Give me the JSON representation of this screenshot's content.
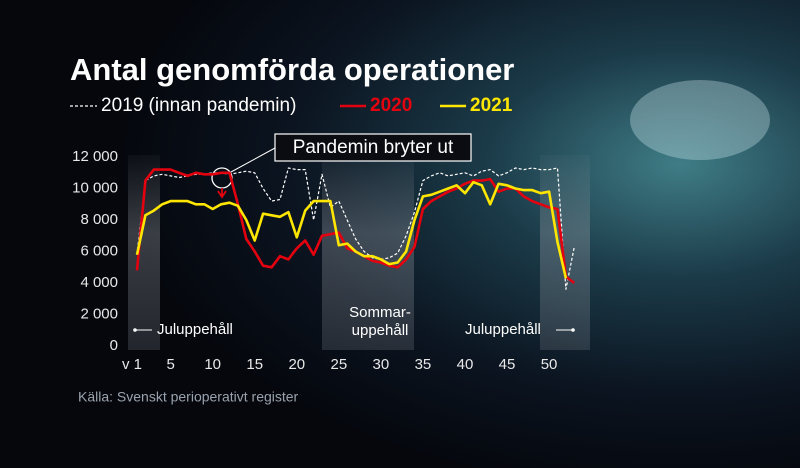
{
  "chart_data": {
    "type": "line",
    "title": "Antal genomförda operationer",
    "source": "Källa: Svenskt perioperativt register",
    "annotations": {
      "pandemic": "Pandemin bryter ut",
      "winter_start": "Juluppehåll",
      "summer": [
        "Sommar-",
        "uppehåll"
      ],
      "winter_end": "Juluppehåll"
    },
    "x": [
      1,
      2,
      3,
      4,
      5,
      6,
      7,
      8,
      9,
      10,
      11,
      12,
      13,
      14,
      15,
      16,
      17,
      18,
      19,
      20,
      21,
      22,
      23,
      24,
      25,
      26,
      27,
      28,
      29,
      30,
      31,
      32,
      33,
      34,
      35,
      36,
      37,
      38,
      39,
      40,
      41,
      42,
      43,
      44,
      45,
      46,
      47,
      48,
      49,
      50,
      51,
      52,
      53
    ],
    "series": [
      {
        "name": "2019 (innan pandemin)",
        "color": "#ffffff",
        "style": "dashed",
        "values": [
          5800,
          10500,
          10800,
          10900,
          10800,
          10700,
          10800,
          10900,
          10900,
          11000,
          11000,
          10900,
          11000,
          11100,
          11000,
          10000,
          9200,
          9300,
          11300,
          11200,
          11200,
          8000,
          10900,
          8800,
          9200,
          8000,
          6800,
          6000,
          5600,
          5500,
          5600,
          5900,
          7000,
          8500,
          10500,
          10800,
          11000,
          10800,
          10900,
          11000,
          10800,
          11100,
          11200,
          10800,
          11000,
          11300,
          11200,
          11300,
          11200,
          11200,
          11300,
          3600,
          6300
        ]
      },
      {
        "name": "2020",
        "color": "#e3000f",
        "style": "solid",
        "values": [
          4800,
          10500,
          11200,
          11200,
          11200,
          11000,
          10800,
          11000,
          10900,
          10900,
          11000,
          11000,
          9000,
          6800,
          6000,
          5100,
          5000,
          5700,
          5500,
          6200,
          6700,
          5800,
          7000,
          7100,
          7200,
          6200,
          6000,
          5700,
          5400,
          5300,
          5100,
          5000,
          5500,
          6300,
          8700,
          9200,
          9500,
          9800,
          10000,
          10300,
          10500,
          10500,
          10600,
          9800,
          10000,
          10000,
          9500,
          9200,
          9000,
          8800,
          8700,
          4400,
          4000
        ]
      },
      {
        "name": "2021",
        "color": "#ffe600",
        "style": "solid",
        "values": [
          5800,
          8300,
          8600,
          9000,
          9200,
          9200,
          9200,
          9000,
          9000,
          8700,
          9000,
          9100,
          8900,
          8000,
          6700,
          8400,
          8300,
          8200,
          8500,
          6900,
          8600,
          9200,
          9200,
          9200,
          6400,
          6500,
          6000,
          5700,
          5700,
          5500,
          5200,
          5300,
          6000,
          8000,
          9500,
          9600,
          9800,
          10000,
          10200,
          9700,
          10400,
          10200,
          9000,
          10300,
          10200,
          10000,
          9900,
          9900,
          9700,
          9800,
          6600,
          4300,
          null
        ]
      }
    ],
    "xlim": [
      0,
      54
    ],
    "xticks": [
      {
        "value": 1,
        "label": "v 1"
      },
      5,
      10,
      15,
      20,
      25,
      30,
      35,
      40,
      45,
      50
    ],
    "ylim": [
      0,
      12000
    ],
    "yticks": [
      0,
      {
        "value": 2000,
        "label": "2 000"
      },
      {
        "value": 4000,
        "label": "4 000"
      },
      {
        "value": 6000,
        "label": "6 000"
      },
      {
        "value": 8000,
        "label": "8 000"
      },
      {
        "value": 10000,
        "label": "10 000"
      },
      {
        "value": 12000,
        "label": "12 000"
      }
    ]
  }
}
